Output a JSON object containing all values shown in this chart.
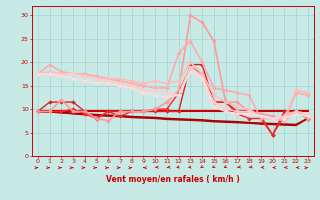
{
  "xlabel": "Vent moyen/en rafales ( km/h )",
  "xlim": [
    -0.5,
    23.5
  ],
  "ylim": [
    0,
    32
  ],
  "yticks": [
    0,
    5,
    10,
    15,
    20,
    25,
    30
  ],
  "xticks": [
    0,
    1,
    2,
    3,
    4,
    5,
    6,
    7,
    8,
    9,
    10,
    11,
    12,
    13,
    14,
    15,
    16,
    17,
    18,
    19,
    20,
    21,
    22,
    23
  ],
  "bg_color": "#c8eae6",
  "grid_color": "#99cccc",
  "series": [
    {
      "x": [
        0,
        1,
        2,
        3,
        4,
        5,
        6,
        7,
        8,
        9,
        10,
        11,
        12,
        13,
        14,
        15,
        16,
        17,
        18,
        19,
        20,
        21,
        22,
        23
      ],
      "y": [
        9.5,
        9.5,
        9.5,
        9.5,
        9.5,
        9.5,
        9.5,
        9.5,
        9.5,
        9.5,
        9.5,
        9.5,
        9.5,
        9.5,
        9.5,
        9.5,
        9.5,
        9.5,
        9.5,
        9.5,
        9.5,
        9.5,
        9.5,
        9.5
      ],
      "color": "#cc0000",
      "lw": 1.5,
      "marker": null,
      "alpha": 1.0
    },
    {
      "x": [
        0,
        1,
        2,
        3,
        4,
        5,
        6,
        7,
        8,
        9,
        10,
        11,
        12,
        13,
        14,
        15,
        16,
        17,
        18,
        19,
        20,
        21,
        22,
        23
      ],
      "y": [
        9.5,
        9.4,
        9.3,
        9.1,
        9.0,
        8.8,
        8.7,
        8.6,
        8.4,
        8.3,
        8.2,
        8.0,
        7.9,
        7.8,
        7.7,
        7.5,
        7.4,
        7.3,
        7.1,
        7.0,
        6.9,
        6.8,
        6.7,
        8.0
      ],
      "color": "#990000",
      "lw": 1.2,
      "marker": null,
      "alpha": 1.0
    },
    {
      "x": [
        0,
        1,
        2,
        3,
        4,
        5,
        6,
        7,
        8,
        9,
        10,
        11,
        12,
        13,
        14,
        15,
        16,
        17,
        18,
        19,
        20,
        21,
        22,
        23
      ],
      "y": [
        9.5,
        9.4,
        9.2,
        9.0,
        8.8,
        8.6,
        8.5,
        8.4,
        8.2,
        8.1,
        8.0,
        7.8,
        7.7,
        7.6,
        7.5,
        7.3,
        7.2,
        7.1,
        7.0,
        6.8,
        6.7,
        6.6,
        6.5,
        8.0
      ],
      "color": "#bb0000",
      "lw": 1.0,
      "marker": null,
      "alpha": 1.0
    },
    {
      "x": [
        0,
        1,
        2,
        3,
        4,
        5,
        6,
        7,
        8,
        9,
        10,
        11,
        12,
        13,
        14,
        15,
        16,
        17,
        18,
        19,
        20,
        21,
        22,
        23
      ],
      "y": [
        9.5,
        11.5,
        11.5,
        11.5,
        9.5,
        8.0,
        9.5,
        9.5,
        9.5,
        9.5,
        9.5,
        9.5,
        9.5,
        19.5,
        19.5,
        11.5,
        11.5,
        9.5,
        9.5,
        8.5,
        4.5,
        9.5,
        9.5,
        8.0
      ],
      "color": "#dd2222",
      "lw": 1.0,
      "marker": "D",
      "markersize": 2.0,
      "alpha": 1.0
    },
    {
      "x": [
        0,
        1,
        2,
        3,
        4,
        5,
        6,
        7,
        8,
        9,
        10,
        11,
        12,
        13,
        14,
        15,
        16,
        17,
        18,
        19,
        20,
        21,
        22,
        23
      ],
      "y": [
        9.5,
        9.5,
        9.5,
        10.0,
        9.0,
        8.0,
        9.5,
        8.5,
        9.5,
        9.5,
        10.0,
        10.0,
        13.5,
        19.0,
        17.5,
        11.5,
        11.5,
        9.0,
        8.0,
        8.0,
        4.5,
        8.5,
        9.5,
        8.0
      ],
      "color": "#ff2222",
      "lw": 1.0,
      "marker": "D",
      "markersize": 2.0,
      "alpha": 1.0
    },
    {
      "x": [
        0,
        1,
        2,
        3,
        4,
        5,
        6,
        7,
        8,
        9,
        10,
        11,
        12,
        13,
        14,
        15,
        16,
        17,
        18,
        19,
        20,
        21,
        22,
        23
      ],
      "y": [
        9.5,
        9.5,
        12.0,
        9.5,
        9.5,
        8.0,
        7.5,
        9.5,
        9.5,
        9.5,
        10.0,
        11.5,
        14.0,
        30.0,
        28.5,
        24.5,
        11.5,
        11.5,
        9.5,
        9.0,
        8.5,
        7.5,
        9.5,
        8.0
      ],
      "color": "#ff9999",
      "lw": 1.2,
      "marker": "D",
      "markersize": 2.0,
      "alpha": 1.0
    },
    {
      "x": [
        0,
        1,
        2,
        3,
        4,
        5,
        6,
        7,
        8,
        9,
        10,
        11,
        12,
        13,
        14,
        15,
        16,
        17,
        18,
        19,
        20,
        21,
        22,
        23
      ],
      "y": [
        17.5,
        19.5,
        18.0,
        17.5,
        17.5,
        17.0,
        16.5,
        16.0,
        15.5,
        15.0,
        14.5,
        14.5,
        22.0,
        24.5,
        20.0,
        14.5,
        14.0,
        13.5,
        13.0,
        8.0,
        8.0,
        7.5,
        13.5,
        13.0
      ],
      "color": "#ffaaaa",
      "lw": 1.2,
      "marker": "D",
      "markersize": 2.0,
      "alpha": 1.0
    },
    {
      "x": [
        0,
        1,
        2,
        3,
        4,
        5,
        6,
        7,
        8,
        9,
        10,
        11,
        12,
        13,
        14,
        15,
        16,
        17,
        18,
        19,
        20,
        21,
        22,
        23
      ],
      "y": [
        17.5,
        18.0,
        17.5,
        17.5,
        17.0,
        16.5,
        16.5,
        16.5,
        16.0,
        15.5,
        16.0,
        15.5,
        16.0,
        20.0,
        17.5,
        13.0,
        11.5,
        10.5,
        10.0,
        8.5,
        8.0,
        8.0,
        14.0,
        13.5
      ],
      "color": "#ffbbbb",
      "lw": 1.2,
      "marker": "D",
      "markersize": 2.0,
      "alpha": 1.0
    },
    {
      "x": [
        0,
        1,
        2,
        3,
        4,
        5,
        6,
        7,
        8,
        9,
        10,
        11,
        12,
        13,
        14,
        15,
        16,
        17,
        18,
        19,
        20,
        21,
        22,
        23
      ],
      "y": [
        17.5,
        17.5,
        17.5,
        17.5,
        17.0,
        16.5,
        16.0,
        15.5,
        15.0,
        14.0,
        14.0,
        13.5,
        13.0,
        19.0,
        17.0,
        11.5,
        10.0,
        9.5,
        9.5,
        8.5,
        8.0,
        8.5,
        9.5,
        9.0
      ],
      "color": "#ffcccc",
      "lw": 1.2,
      "marker": "D",
      "markersize": 2.0,
      "alpha": 1.0
    },
    {
      "x": [
        0,
        1,
        2,
        3,
        4,
        5,
        6,
        7,
        8,
        9,
        10,
        11,
        12,
        13,
        14,
        15,
        16,
        17,
        18,
        19,
        20,
        21,
        22,
        23
      ],
      "y": [
        17.5,
        17.5,
        17.0,
        16.5,
        16.0,
        15.5,
        15.5,
        15.0,
        14.5,
        13.5,
        13.0,
        12.5,
        13.0,
        18.0,
        16.5,
        10.5,
        9.5,
        9.0,
        9.0,
        8.5,
        8.0,
        8.0,
        9.0,
        8.5
      ],
      "color": "#ffdddd",
      "lw": 1.2,
      "marker": "D",
      "markersize": 2.0,
      "alpha": 1.0
    }
  ],
  "arrow_directions": [
    1,
    1,
    1,
    1,
    1,
    1,
    1,
    1,
    1,
    -1,
    -1,
    -1,
    -1,
    -1,
    -1,
    -1,
    -1,
    -1,
    -1,
    -1,
    -1,
    -1,
    -1,
    1
  ],
  "arrow_angles_deg": [
    0,
    0,
    0,
    0,
    0,
    0,
    0,
    0,
    0,
    0,
    15,
    15,
    30,
    30,
    45,
    45,
    45,
    20,
    20,
    10,
    5,
    5,
    5,
    0
  ]
}
